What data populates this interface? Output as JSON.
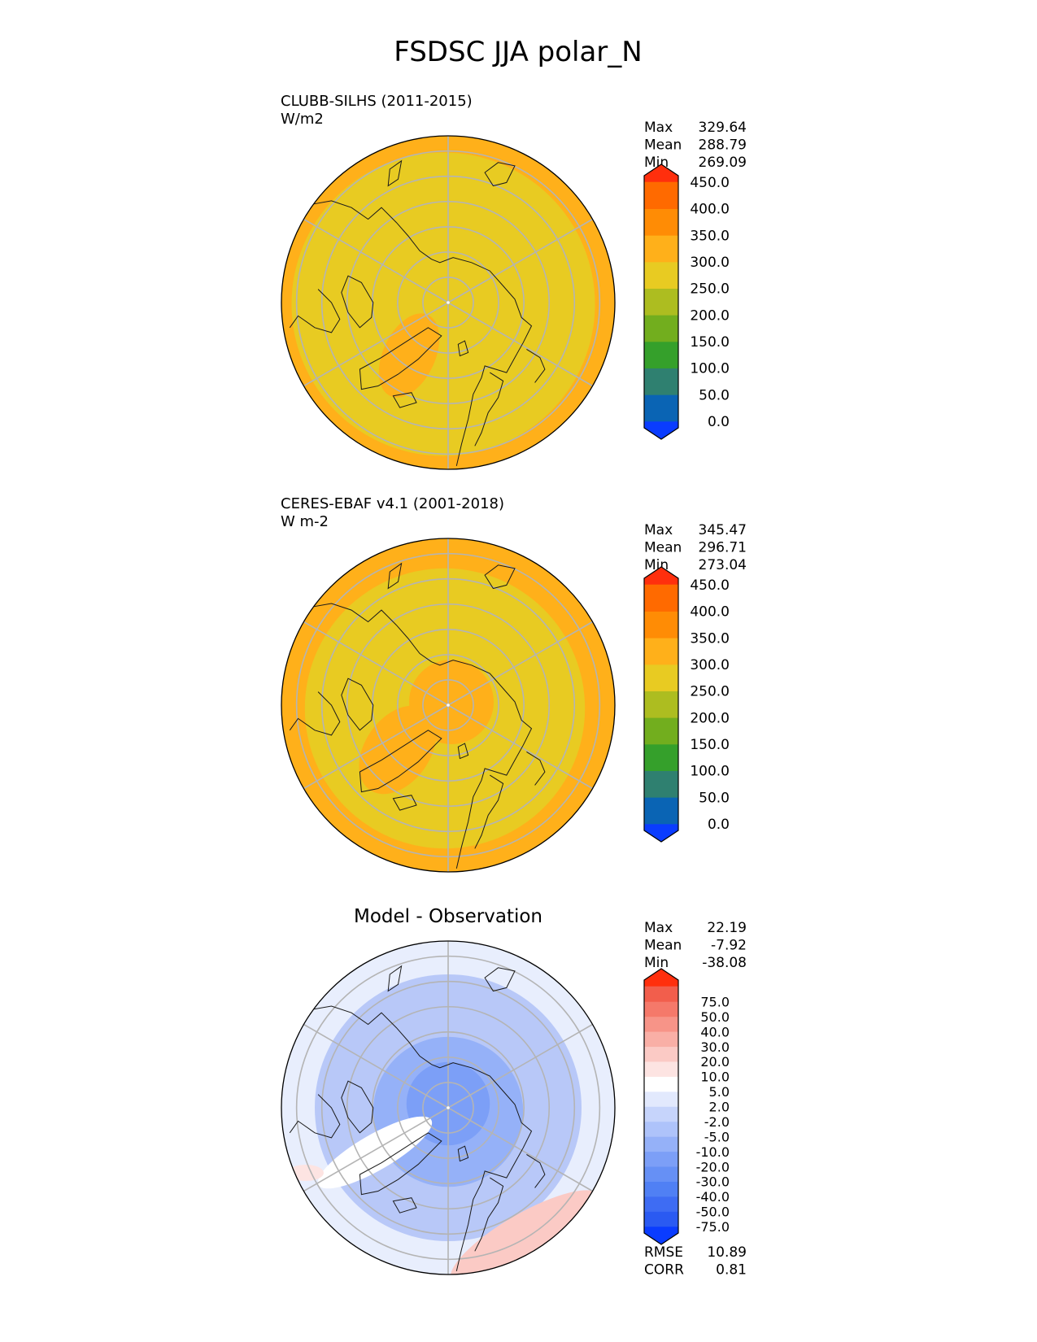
{
  "figure": {
    "title": "FSDSC JJA polar_N"
  },
  "chart_data": [
    {
      "type": "heatmap",
      "projection": "north-polar-stereographic",
      "title_left": "CLUBB-SILHS (2011-2015)",
      "units": "W/m2",
      "center_title": "",
      "stats": [
        {
          "label": "Max",
          "value": "329.64"
        },
        {
          "label": "Mean",
          "value": "288.79"
        },
        {
          "label": "Min",
          "value": "269.09"
        }
      ],
      "levels": [
        "0.0",
        "50.0",
        "100.0",
        "150.0",
        "200.0",
        "250.0",
        "300.0",
        "350.0",
        "400.0",
        "450.0"
      ],
      "colors": [
        "#0a3cff",
        "#0a64b4",
        "#2f8070",
        "#35a02b",
        "#72ae1e",
        "#adbd20",
        "#e8cb22",
        "#ffb01a",
        "#ff8c05",
        "#ff6a00",
        "#ff2f0d"
      ],
      "field": {
        "base_color": "#e8cb22",
        "outer_color": "#ffb01a",
        "pattern": "outer-ring"
      },
      "extra_stats": []
    },
    {
      "type": "heatmap",
      "projection": "north-polar-stereographic",
      "title_left": "CERES-EBAF v4.1 (2001-2018)",
      "units": "W m-2",
      "center_title": "",
      "stats": [
        {
          "label": "Max",
          "value": "345.47"
        },
        {
          "label": "Mean",
          "value": "296.71"
        },
        {
          "label": "Min",
          "value": "273.04"
        }
      ],
      "levels": [
        "0.0",
        "50.0",
        "100.0",
        "150.0",
        "200.0",
        "250.0",
        "300.0",
        "350.0",
        "400.0",
        "450.0"
      ],
      "colors": [
        "#0a3cff",
        "#0a64b4",
        "#2f8070",
        "#35a02b",
        "#72ae1e",
        "#adbd20",
        "#e8cb22",
        "#ffb01a",
        "#ff8c05",
        "#ff6a00",
        "#ff2f0d"
      ],
      "field": {
        "base_color": "#e8cb22",
        "outer_color": "#ffb01a",
        "pattern": "outer-ring-and-pole"
      },
      "extra_stats": []
    },
    {
      "type": "heatmap",
      "projection": "north-polar-stereographic",
      "title_left": "",
      "units": "",
      "center_title": "Model - Observation",
      "stats": [
        {
          "label": "Max",
          "value": "22.19"
        },
        {
          "label": "Mean",
          "value": "-7.92"
        },
        {
          "label": "Min",
          "value": "-38.08"
        }
      ],
      "levels": [
        "-75.0",
        "-50.0",
        "-40.0",
        "-30.0",
        "-20.0",
        "-10.0",
        "-5.0",
        "-2.0",
        "2.0",
        "5.0",
        "10.0",
        "20.0",
        "30.0",
        "40.0",
        "50.0",
        "75.0"
      ],
      "colors": [
        "#0a3cff",
        "#2a5af2",
        "#3e6cf3",
        "#5080f4",
        "#6690f5",
        "#7c9ff7",
        "#95b1f8",
        "#aec3fa",
        "#c6d4fb",
        "#e2e9fd",
        "#ffffff",
        "#fde4e2",
        "#fbcac5",
        "#f9afa6",
        "#f79488",
        "#f5796a",
        "#f25e4c",
        "#ff2f0d"
      ],
      "field": {
        "base_color": "#b8c8f8",
        "outer_color": "#e8eefd",
        "pattern": "difference"
      },
      "extra_stats": [
        {
          "label": "RMSE",
          "value": "10.89"
        },
        {
          "label": "CORR",
          "value": "0.81"
        }
      ]
    }
  ]
}
